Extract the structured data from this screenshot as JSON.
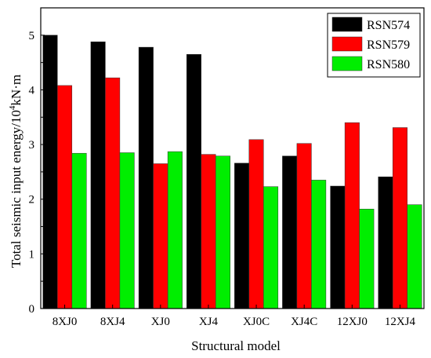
{
  "chart_data": {
    "type": "bar",
    "title": "",
    "xlabel": "Structural model",
    "ylabel_main": "Total seismic input energy/10",
    "ylabel_sup": "4",
    "ylabel_tail": "kN·m",
    "categories": [
      "8XJ0",
      "8XJ4",
      "XJ0",
      "XJ4",
      "XJ0C",
      "XJ4C",
      "12XJ0",
      "12XJ4"
    ],
    "ylim": [
      0,
      5.5
    ],
    "yticks": [
      0,
      1,
      2,
      3,
      4,
      5
    ],
    "legend_position": "top-right",
    "grid": false,
    "series": [
      {
        "name": "RSN574",
        "color": "#000000",
        "values": [
          5.0,
          4.88,
          4.78,
          4.65,
          2.66,
          2.79,
          2.24,
          2.41
        ]
      },
      {
        "name": "RSN579",
        "color": "#ff0000",
        "values": [
          4.08,
          4.22,
          2.65,
          2.82,
          3.09,
          3.02,
          3.4,
          3.31
        ]
      },
      {
        "name": "RSN580",
        "color": "#00ee00",
        "values": [
          2.84,
          2.85,
          2.87,
          2.79,
          2.23,
          2.35,
          1.82,
          1.9
        ]
      }
    ]
  }
}
